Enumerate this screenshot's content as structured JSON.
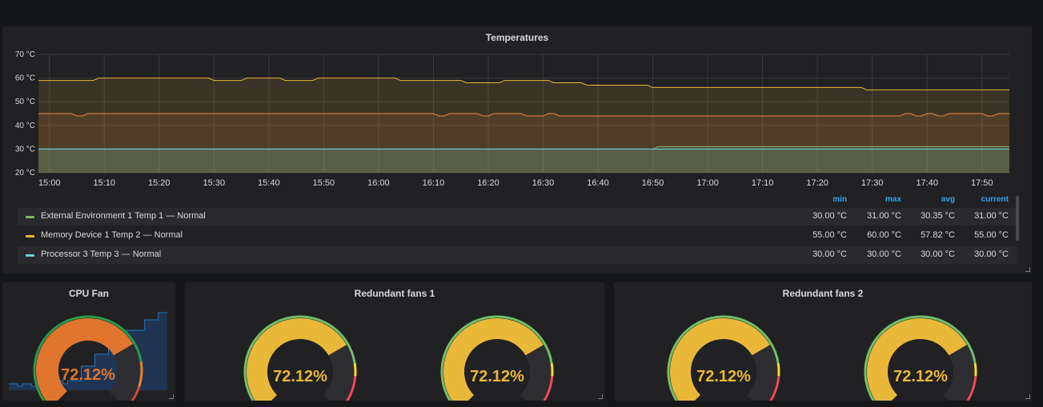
{
  "chart_data": [
    {
      "type": "line",
      "title": "Temperatures",
      "y_ticks": [
        "70 °C",
        "60 °C",
        "50 °C",
        "40 °C",
        "30 °C",
        "20 °C"
      ],
      "ylim": [
        20,
        70
      ],
      "x_ticks": [
        "15:00",
        "15:10",
        "15:20",
        "15:30",
        "15:40",
        "15:50",
        "16:00",
        "16:10",
        "16:20",
        "16:30",
        "16:40",
        "16:50",
        "17:00",
        "17:10",
        "17:20",
        "17:30",
        "17:40",
        "17:50"
      ],
      "xlim": [
        "14:58",
        "17:55"
      ],
      "grid": true,
      "legend_columns": [
        "min",
        "max",
        "avg",
        "current"
      ],
      "series": [
        {
          "name": "External Environment 1 Temp 1 — Normal",
          "color": "#7eb26d",
          "stats": [
            "30.00 °C",
            "31.00 °C",
            "30.35 °C",
            "31.00 °C"
          ],
          "x": [
            "14:58",
            "16:50",
            "16:51",
            "17:55"
          ],
          "values": [
            30,
            30,
            31,
            31
          ]
        },
        {
          "name": "Memory Device 1 Temp 2 — Normal",
          "color": "#eab839",
          "stats": [
            "55.00 °C",
            "60.00 °C",
            "57.82 °C",
            "55.00 °C"
          ],
          "x": [
            "14:58",
            "15:08",
            "15:09",
            "15:29",
            "15:30",
            "15:35",
            "15:36",
            "15:42",
            "15:43",
            "15:48",
            "15:49",
            "16:03",
            "16:04",
            "16:15",
            "16:16",
            "16:22",
            "16:23",
            "16:31",
            "16:32",
            "16:37",
            "16:38",
            "16:49",
            "16:50",
            "17:28",
            "17:29",
            "17:55"
          ],
          "values": [
            59,
            59,
            60,
            60,
            59,
            59,
            60,
            60,
            59,
            59,
            60,
            60,
            59,
            59,
            58,
            58,
            59,
            59,
            58,
            58,
            57,
            57,
            56,
            56,
            55,
            55
          ]
        },
        {
          "name": "Processor 3 Temp 3 — Normal",
          "color": "#6ed0e0",
          "stats": [
            "30.00 °C",
            "30.00 °C",
            "30.00 °C",
            "30.00 °C"
          ],
          "x": [
            "14:58",
            "17:55"
          ],
          "values": [
            30,
            30
          ]
        },
        {
          "name": "",
          "color": "#ef843c",
          "x": [
            "14:58",
            "15:04",
            "15:05",
            "15:06",
            "15:07",
            "16:10",
            "16:11",
            "16:12",
            "16:13",
            "16:18",
            "16:19",
            "16:20",
            "16:21",
            "16:26",
            "16:27",
            "16:30",
            "16:31",
            "16:32",
            "16:33",
            "17:35",
            "17:36",
            "17:37",
            "17:38",
            "17:39",
            "17:40",
            "17:41",
            "17:42",
            "17:43",
            "17:44",
            "17:50",
            "17:51",
            "17:52",
            "17:53",
            "17:55"
          ],
          "values": [
            45,
            45,
            44,
            44,
            45,
            45,
            44,
            44,
            45,
            45,
            44,
            44,
            45,
            45,
            44,
            44,
            45,
            45,
            44,
            44,
            45,
            45,
            44,
            44,
            45,
            45,
            44,
            44,
            45,
            45,
            44,
            44,
            45,
            45
          ]
        }
      ]
    },
    {
      "type": "gauge",
      "title": "CPU Fan",
      "value": 72.12,
      "value_label": "72.12%",
      "min": 0,
      "max": 100,
      "thresholds": [
        {
          "color": "#299c46",
          "upto": 80
        },
        {
          "color": "#ed8128",
          "upto": 90
        },
        {
          "color": "#d44a3a",
          "upto": 100
        }
      ],
      "sparkline": [
        0.08,
        0.08,
        0.05,
        0.08,
        0.08,
        0.05,
        0.08,
        0.08,
        0.05,
        0.08,
        0.08,
        0.12,
        0.08,
        0.12,
        0.12,
        0.12,
        0.3,
        0.3,
        0.3,
        0.45,
        0.45,
        0.45,
        0.6,
        0.6,
        0.6,
        0.6,
        0.75,
        0.75,
        0.75,
        0.75,
        0.88,
        0.88,
        0.88,
        0.97,
        0.97,
        0.97
      ]
    },
    {
      "type": "gauge",
      "title": "Redundant fans 1",
      "gauges": [
        {
          "value": 72.12,
          "value_label": "72.12%"
        },
        {
          "value": 72.12,
          "value_label": "72.12%"
        }
      ],
      "min": 0,
      "max": 100,
      "thresholds": [
        {
          "color": "#73bf69",
          "upto": 80
        },
        {
          "color": "#fade2a",
          "upto": 85
        },
        {
          "color": "#f2495c",
          "upto": 100
        }
      ]
    },
    {
      "type": "gauge",
      "title": "Redundant fans 2",
      "gauges": [
        {
          "value": 72.12,
          "value_label": "72.12%"
        },
        {
          "value": 72.12,
          "value_label": "72.12%"
        }
      ],
      "min": 0,
      "max": 100,
      "thresholds": [
        {
          "color": "#73bf69",
          "upto": 80
        },
        {
          "color": "#fade2a",
          "upto": 85
        },
        {
          "color": "#f2495c",
          "upto": 100
        }
      ]
    }
  ],
  "colors": {
    "background": "#161719",
    "panel": "#212124",
    "legend_header": "#33a2e5",
    "gauge_fill": "#eab839",
    "cpu_gauge_fill": "#e0752d"
  }
}
